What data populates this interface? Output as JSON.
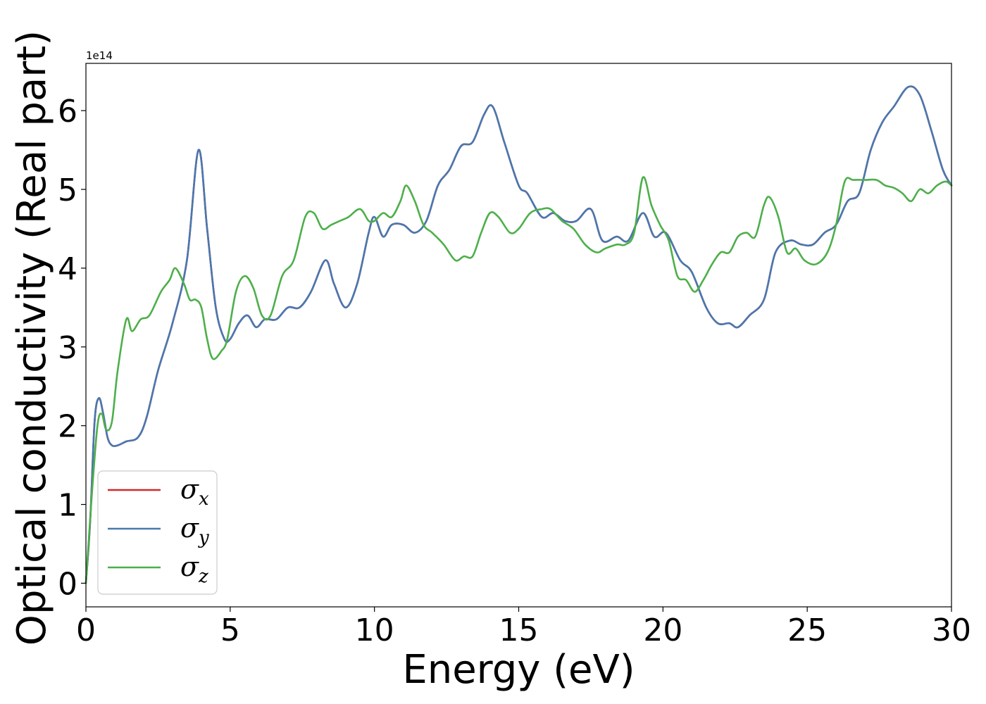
{
  "chart_data": {
    "type": "line",
    "xlabel": "Energy (eV)",
    "ylabel": "Optical conductivity (Real part)",
    "y_offset_label": "1e14",
    "xlim": [
      0,
      30
    ],
    "ylim": [
      -0.3,
      6.6
    ],
    "xticks": [
      0,
      5,
      10,
      15,
      20,
      25,
      30
    ],
    "xtick_labels": [
      "0",
      "5",
      "10",
      "15",
      "20",
      "25",
      "30"
    ],
    "yticks": [
      0,
      1,
      2,
      3,
      4,
      5,
      6
    ],
    "ytick_labels": [
      "0",
      "1",
      "2",
      "3",
      "4",
      "5",
      "6"
    ],
    "legend_position": "lower-left",
    "series": [
      {
        "name": "σ_x",
        "legend_base": "σ",
        "legend_sub": "x",
        "color": "#d62728",
        "x": [
          0,
          0.15,
          0.3,
          0.45,
          0.6,
          0.75,
          0.9,
          1.1,
          1.4,
          1.8,
          2.1,
          2.5,
          3.0,
          3.5,
          3.9,
          4.2,
          4.5,
          4.8,
          5.0,
          5.3,
          5.6,
          5.9,
          6.2,
          6.6,
          7.0,
          7.4,
          7.8,
          8.3,
          8.6,
          9.0,
          9.4,
          9.8,
          10.0,
          10.3,
          10.6,
          11.0,
          11.4,
          11.8,
          12.2,
          12.6,
          13.0,
          13.4,
          13.8,
          14.1,
          14.5,
          15.0,
          15.3,
          15.8,
          16.2,
          16.6,
          17.0,
          17.5,
          17.9,
          18.4,
          18.8,
          19.3,
          19.7,
          20.1,
          20.6,
          21.0,
          21.5,
          21.9,
          22.3,
          22.6,
          23.0,
          23.5,
          23.9,
          24.4,
          24.8,
          25.2,
          25.6,
          26.0,
          26.4,
          26.8,
          27.2,
          27.6,
          28.0,
          28.5,
          28.9,
          29.3,
          29.7,
          30.0
        ],
        "y": [
          0.0,
          0.8,
          2.05,
          2.35,
          2.15,
          1.85,
          1.75,
          1.75,
          1.8,
          1.85,
          2.1,
          2.7,
          3.3,
          4.1,
          5.5,
          4.5,
          3.5,
          3.1,
          3.1,
          3.3,
          3.4,
          3.25,
          3.35,
          3.35,
          3.5,
          3.5,
          3.7,
          4.1,
          3.8,
          3.5,
          3.8,
          4.45,
          4.65,
          4.4,
          4.55,
          4.55,
          4.45,
          4.6,
          5.05,
          5.25,
          5.55,
          5.6,
          5.95,
          6.05,
          5.6,
          5.05,
          4.95,
          4.65,
          4.7,
          4.6,
          4.6,
          4.75,
          4.35,
          4.4,
          4.35,
          4.7,
          4.4,
          4.45,
          4.1,
          3.95,
          3.5,
          3.3,
          3.3,
          3.25,
          3.4,
          3.6,
          4.2,
          4.35,
          4.3,
          4.3,
          4.45,
          4.55,
          4.85,
          4.95,
          5.5,
          5.85,
          6.05,
          6.3,
          6.2,
          5.75,
          5.25,
          5.05
        ]
      },
      {
        "name": "σ_y",
        "legend_base": "σ",
        "legend_sub": "y",
        "color": "#4878b0",
        "x": [
          0,
          0.15,
          0.3,
          0.45,
          0.6,
          0.75,
          0.9,
          1.1,
          1.4,
          1.8,
          2.1,
          2.5,
          3.0,
          3.5,
          3.9,
          4.2,
          4.5,
          4.8,
          5.0,
          5.3,
          5.6,
          5.9,
          6.2,
          6.6,
          7.0,
          7.4,
          7.8,
          8.3,
          8.6,
          9.0,
          9.4,
          9.8,
          10.0,
          10.3,
          10.6,
          11.0,
          11.4,
          11.8,
          12.2,
          12.6,
          13.0,
          13.4,
          13.8,
          14.1,
          14.5,
          15.0,
          15.3,
          15.8,
          16.2,
          16.6,
          17.0,
          17.5,
          17.9,
          18.4,
          18.8,
          19.3,
          19.7,
          20.1,
          20.6,
          21.0,
          21.5,
          21.9,
          22.3,
          22.6,
          23.0,
          23.5,
          23.9,
          24.4,
          24.8,
          25.2,
          25.6,
          26.0,
          26.4,
          26.8,
          27.2,
          27.6,
          28.0,
          28.5,
          28.9,
          29.3,
          29.7,
          30.0
        ],
        "y": [
          0.0,
          0.8,
          2.05,
          2.35,
          2.15,
          1.85,
          1.75,
          1.75,
          1.8,
          1.85,
          2.1,
          2.7,
          3.3,
          4.1,
          5.5,
          4.5,
          3.5,
          3.1,
          3.1,
          3.3,
          3.4,
          3.25,
          3.35,
          3.35,
          3.5,
          3.5,
          3.7,
          4.1,
          3.8,
          3.5,
          3.8,
          4.45,
          4.65,
          4.4,
          4.55,
          4.55,
          4.45,
          4.6,
          5.05,
          5.25,
          5.55,
          5.6,
          5.95,
          6.05,
          5.6,
          5.05,
          4.95,
          4.65,
          4.7,
          4.6,
          4.6,
          4.75,
          4.35,
          4.4,
          4.35,
          4.7,
          4.4,
          4.45,
          4.1,
          3.95,
          3.5,
          3.3,
          3.3,
          3.25,
          3.4,
          3.6,
          4.2,
          4.35,
          4.3,
          4.3,
          4.45,
          4.55,
          4.85,
          4.95,
          5.5,
          5.85,
          6.05,
          6.3,
          6.2,
          5.75,
          5.25,
          5.05
        ]
      },
      {
        "name": "σ_z",
        "legend_base": "σ",
        "legend_sub": "z",
        "color": "#4daf4a",
        "x": [
          0,
          0.2,
          0.4,
          0.55,
          0.7,
          0.9,
          1.1,
          1.4,
          1.6,
          1.9,
          2.2,
          2.6,
          2.9,
          3.1,
          3.4,
          3.6,
          3.8,
          4.0,
          4.2,
          4.4,
          4.7,
          4.9,
          5.2,
          5.5,
          5.8,
          6.1,
          6.4,
          6.8,
          7.2,
          7.6,
          7.9,
          8.2,
          8.5,
          8.8,
          9.1,
          9.5,
          9.8,
          10.0,
          10.3,
          10.6,
          10.9,
          11.1,
          11.4,
          11.7,
          12.0,
          12.4,
          12.8,
          13.1,
          13.4,
          13.7,
          14.0,
          14.3,
          14.7,
          15.0,
          15.4,
          15.8,
          16.1,
          16.5,
          16.9,
          17.3,
          17.7,
          18.0,
          18.4,
          18.7,
          19.0,
          19.3,
          19.6,
          19.9,
          20.2,
          20.5,
          20.8,
          21.1,
          21.4,
          21.7,
          22.0,
          22.3,
          22.6,
          22.9,
          23.2,
          23.5,
          23.7,
          24.0,
          24.3,
          24.6,
          24.9,
          25.3,
          25.7,
          26.0,
          26.3,
          26.6,
          27.0,
          27.4,
          27.7,
          28.0,
          28.3,
          28.6,
          28.9,
          29.2,
          29.5,
          29.8,
          30.0
        ],
        "y": [
          0.0,
          1.1,
          2.0,
          2.15,
          1.95,
          2.05,
          2.7,
          3.35,
          3.2,
          3.35,
          3.4,
          3.7,
          3.85,
          4.0,
          3.8,
          3.6,
          3.6,
          3.5,
          3.1,
          2.85,
          2.95,
          3.1,
          3.7,
          3.9,
          3.75,
          3.4,
          3.4,
          3.9,
          4.1,
          4.65,
          4.7,
          4.5,
          4.55,
          4.6,
          4.65,
          4.75,
          4.6,
          4.6,
          4.7,
          4.65,
          4.85,
          5.05,
          4.85,
          4.55,
          4.45,
          4.3,
          4.1,
          4.15,
          4.15,
          4.45,
          4.7,
          4.65,
          4.45,
          4.5,
          4.7,
          4.75,
          4.75,
          4.6,
          4.5,
          4.3,
          4.2,
          4.25,
          4.3,
          4.3,
          4.45,
          5.15,
          4.8,
          4.55,
          4.35,
          3.9,
          3.85,
          3.7,
          3.85,
          4.05,
          4.2,
          4.2,
          4.4,
          4.45,
          4.4,
          4.8,
          4.9,
          4.65,
          4.2,
          4.25,
          4.1,
          4.05,
          4.2,
          4.55,
          5.1,
          5.12,
          5.12,
          5.12,
          5.05,
          5.02,
          4.95,
          4.85,
          5.0,
          4.95,
          5.05,
          5.1,
          5.05
        ]
      }
    ]
  }
}
